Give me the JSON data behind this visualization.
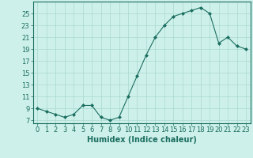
{
  "x": [
    0,
    1,
    2,
    3,
    4,
    5,
    6,
    7,
    8,
    9,
    10,
    11,
    12,
    13,
    14,
    15,
    16,
    17,
    18,
    19,
    20,
    21,
    22,
    23
  ],
  "y": [
    9,
    8.5,
    8,
    7.5,
    8,
    9.5,
    9.5,
    7.5,
    7,
    7.5,
    11,
    14.5,
    18,
    21,
    23,
    24.5,
    25,
    25.5,
    26,
    25,
    20,
    21,
    19.5,
    19
  ],
  "line_color": "#1a6e60",
  "marker": "D",
  "marker_size": 2.0,
  "xlabel": "Humidex (Indice chaleur)",
  "xlim": [
    -0.5,
    23.5
  ],
  "ylim": [
    6.5,
    27
  ],
  "yticks": [
    7,
    9,
    11,
    13,
    15,
    17,
    19,
    21,
    23,
    25
  ],
  "xticks": [
    0,
    1,
    2,
    3,
    4,
    5,
    6,
    7,
    8,
    9,
    10,
    11,
    12,
    13,
    14,
    15,
    16,
    17,
    18,
    19,
    20,
    21,
    22,
    23
  ],
  "bg_color": "#cef0ea",
  "grid_color": "#a8d8d0",
  "tick_color": "#1a6e60",
  "label_color": "#1a6e60",
  "font_size": 6,
  "xlabel_fontsize": 7
}
